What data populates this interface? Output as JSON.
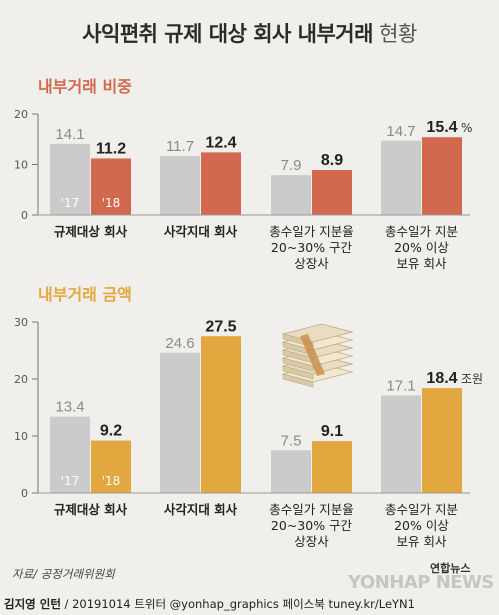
{
  "title": {
    "main": "사익편취 규제 대상 회사 내부거래",
    "suffix": "현황"
  },
  "colors": {
    "year2017": "#cbcbcb",
    "ratio2018": "#d2694f",
    "amount2018": "#e3a73f",
    "axis": "#777777"
  },
  "chart_data": [
    {
      "type": "bar",
      "title": "내부거래 비중",
      "categories": [
        "규제대상 회사",
        "사각지대 회사",
        "총수일가 지분율 20~30% 구간 상장사",
        "총수일가 지분 20% 이상 보유 회사"
      ],
      "category_lines": [
        [
          "규제대상 회사"
        ],
        [
          "사각지대 회사"
        ],
        [
          "총수일가 지분율",
          "20~30% 구간",
          "상장사"
        ],
        [
          "총수일가 지분",
          "20% 이상",
          "보유 회사"
        ]
      ],
      "series": [
        {
          "name": "'17",
          "values": [
            14.1,
            11.7,
            7.9,
            14.7
          ]
        },
        {
          "name": "'18",
          "values": [
            11.2,
            12.4,
            8.9,
            15.4
          ]
        }
      ],
      "unit_label": "%",
      "yticks": [
        0,
        10,
        20
      ],
      "ylim": [
        0,
        20
      ]
    },
    {
      "type": "bar",
      "title": "내부거래 금액",
      "categories": [
        "규제대상 회사",
        "사각지대 회사",
        "총수일가 지분율 20~30% 구간 상장사",
        "총수일가 지분 20% 이상 보유 회사"
      ],
      "category_lines": [
        [
          "규제대상 회사"
        ],
        [
          "사각지대 회사"
        ],
        [
          "총수일가 지분율",
          "20~30% 구간",
          "상장사"
        ],
        [
          "총수일가 지분",
          "20% 이상",
          "보유 회사"
        ]
      ],
      "series": [
        {
          "name": "'17",
          "values": [
            13.4,
            24.6,
            7.5,
            17.1
          ]
        },
        {
          "name": "'18",
          "values": [
            9.2,
            27.5,
            9.1,
            18.4
          ]
        }
      ],
      "unit_label": "조원",
      "yticks": [
        0,
        10,
        20,
        30
      ],
      "ylim": [
        0,
        30
      ]
    }
  ],
  "footer": {
    "source": "자료/ 공정거래위원회",
    "author": "김지영 인턴",
    "credit_rest": " / 20191014  트위터 @yonhap_graphics  페이스북 tuney.kr/LeYN1",
    "logo_small": "연합뉴스",
    "logo_big": "YONHAP NEWS"
  }
}
